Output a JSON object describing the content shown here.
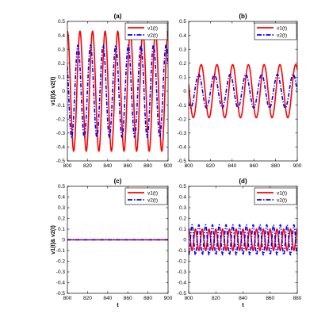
{
  "chart_data": [
    {
      "type": "line",
      "title": "(a)",
      "xlabel": "",
      "ylabel": "v1(t)& v2(t)",
      "xlim": [
        800,
        900
      ],
      "ylim": [
        -0.5,
        0.5
      ],
      "xticks": [
        800,
        820,
        840,
        860,
        880,
        900
      ],
      "yticks": [
        -0.5,
        -0.4,
        -0.3,
        -0.2,
        -0.1,
        0,
        0.1,
        0.2,
        0.3,
        0.4,
        0.5
      ],
      "legend": "top-right",
      "series": [
        {
          "name": "v1(t)",
          "color": "#ff0000",
          "style": "solid",
          "amplitude": 0.43,
          "period": 12.5,
          "phase": 0.0
        },
        {
          "name": "v2(t)",
          "color": "#0000ff",
          "style": "dashdot",
          "amplitude": 0.33,
          "period": 12.5,
          "phase": 1.0
        }
      ]
    },
    {
      "type": "line",
      "title": "(b)",
      "xlabel": "",
      "ylabel": "",
      "xlim": [
        800,
        900
      ],
      "ylim": [
        -0.5,
        0.5
      ],
      "xticks": [
        800,
        820,
        840,
        860,
        880,
        900
      ],
      "yticks": [
        -0.5,
        -0.4,
        -0.3,
        -0.2,
        -0.1,
        0,
        0.1,
        0.2,
        0.3,
        0.4,
        0.5
      ],
      "legend": "top-right",
      "series": [
        {
          "name": "v1(t)",
          "color": "#ff0000",
          "style": "solid",
          "amplitude": 0.19,
          "period": 14.5,
          "phase": 1.3
        },
        {
          "name": "v2(t)",
          "color": "#0000ff",
          "style": "dashdot",
          "amplitude": 0.12,
          "period": 14.5,
          "phase": 2.3
        }
      ]
    },
    {
      "type": "line",
      "title": "(c)",
      "xlabel": "t",
      "ylabel": "v1(t)& v2(t)",
      "xlim": [
        800,
        900
      ],
      "ylim": [
        -0.5,
        0.5
      ],
      "xticks": [
        800,
        820,
        840,
        860,
        880,
        900
      ],
      "yticks": [
        -0.5,
        -0.4,
        -0.3,
        -0.2,
        -0.1,
        0,
        0.1,
        0.2,
        0.3,
        0.4,
        0.5
      ],
      "legend": "top-right",
      "series": [
        {
          "name": "v1(t)",
          "color": "#ff0000",
          "style": "solid",
          "amplitude": 0.0,
          "period": 12.5,
          "phase": 0.0
        },
        {
          "name": "v2(t)",
          "color": "#0000ff",
          "style": "dashdot",
          "amplitude": 0.0,
          "period": 12.5,
          "phase": 0.0
        }
      ]
    },
    {
      "type": "line",
      "title": "(d)",
      "xlabel": "t",
      "ylabel": "",
      "xlim": [
        800,
        880
      ],
      "ylim": [
        -0.5,
        0.5
      ],
      "xticks": [
        800,
        820,
        840,
        860,
        880
      ],
      "yticks": [
        -0.5,
        -0.4,
        -0.3,
        -0.2,
        -0.1,
        0,
        0.1,
        0.2,
        0.3,
        0.4,
        0.5
      ],
      "legend": "top-right",
      "series": [
        {
          "name": "v1(t)",
          "color": "#ff0000",
          "style": "solid",
          "amplitude": 0.1,
          "period": 5.0,
          "phase": 0.0
        },
        {
          "name": "v2(t)",
          "color": "#0000ff",
          "style": "dashdot",
          "amplitude": 0.14,
          "period": 5.0,
          "phase": 3.1416
        }
      ]
    }
  ]
}
